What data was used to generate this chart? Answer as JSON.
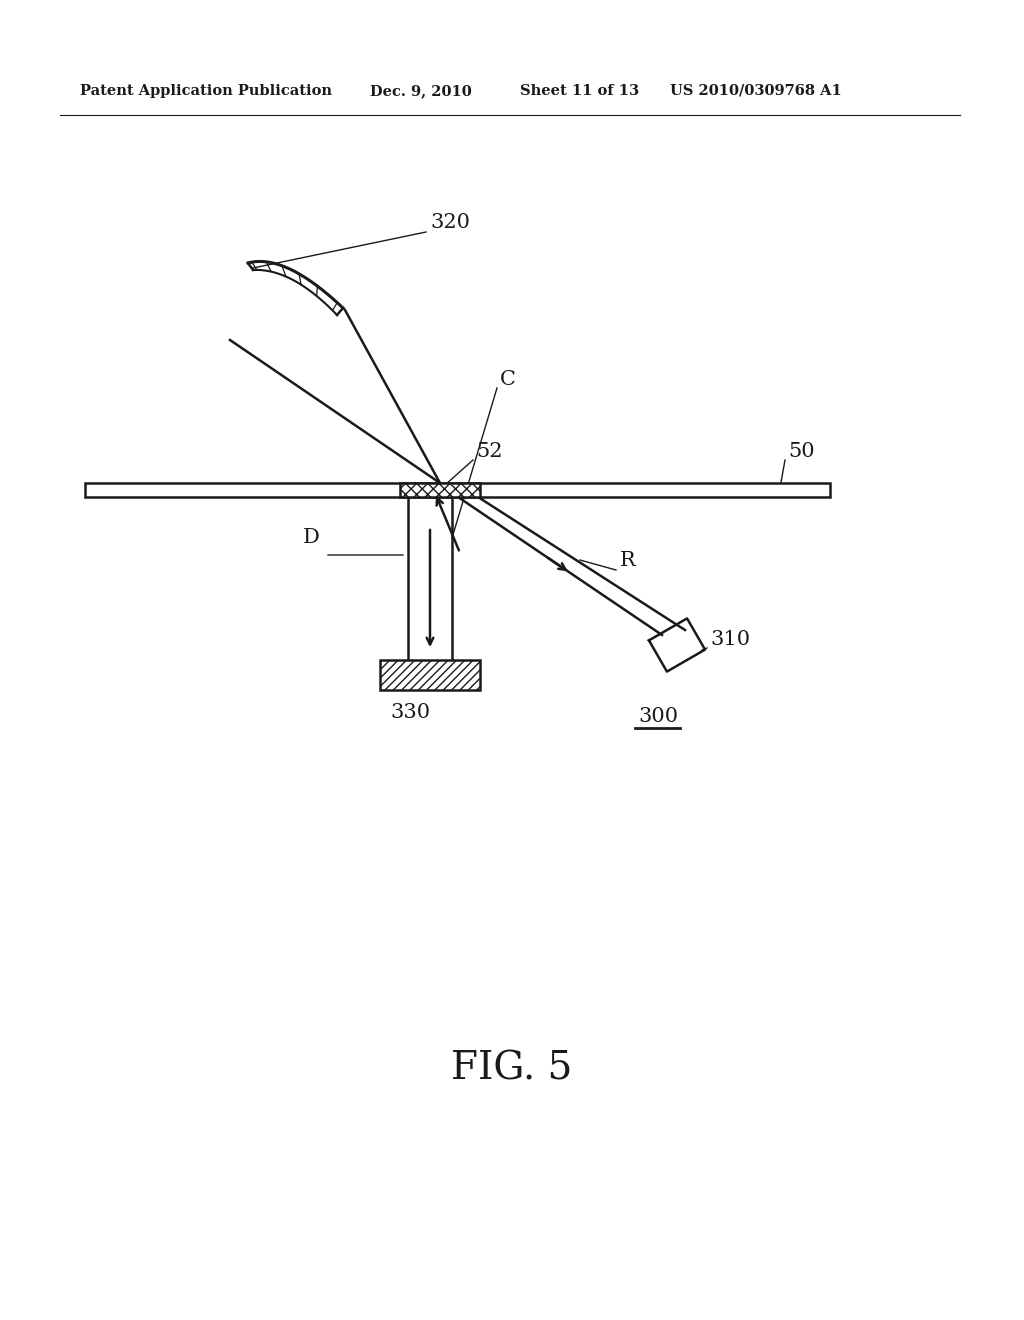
{
  "bg_color": "#ffffff",
  "line_color": "#1a1a1a",
  "header_text": "Patent Application Publication",
  "header_date": "Dec. 9, 2010",
  "header_sheet": "Sheet 11 of 13",
  "header_patent": "US 2010/0309768 A1",
  "fig_label": "FIG. 5",
  "diagram_number": "300"
}
